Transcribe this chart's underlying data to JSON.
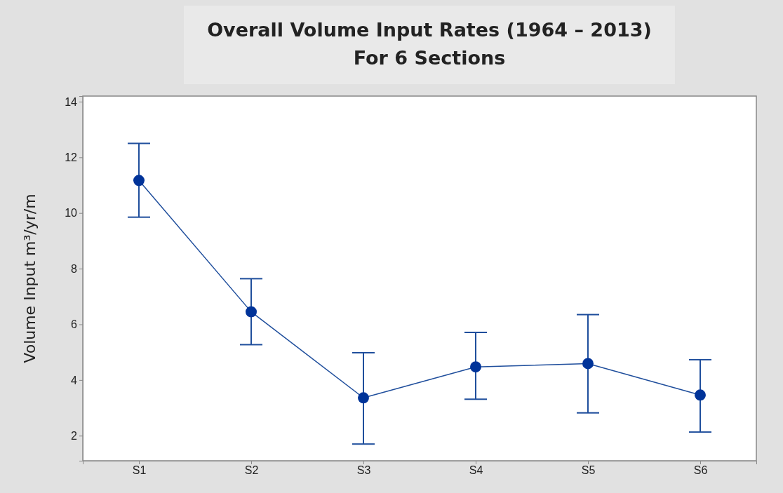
{
  "chart_data": {
    "type": "line",
    "title": "Overall Volume Input Rates (1964 – 2013)\nFor 6 Sections",
    "ylabel": "Volume Input m³/yr/m",
    "categories": [
      "S1",
      "S2",
      "S3",
      "S4",
      "S5",
      "S6"
    ],
    "series": [
      {
        "color": "#1f4e9c",
        "values": [
          11.17,
          6.45,
          3.36,
          4.47,
          4.59,
          3.46
        ],
        "errors": [
          [
            9.85,
            12.5
          ],
          [
            5.27,
            7.64
          ],
          [
            1.7,
            4.98
          ],
          [
            3.31,
            5.71
          ],
          [
            2.82,
            6.35
          ],
          [
            2.13,
            4.73
          ]
        ]
      }
    ],
    "ylim": [
      1.1,
      14.2
    ],
    "yticks": [
      2,
      4,
      6,
      8,
      10,
      12,
      14
    ],
    "marker": "circle",
    "line_style": "solid",
    "grid": false
  }
}
